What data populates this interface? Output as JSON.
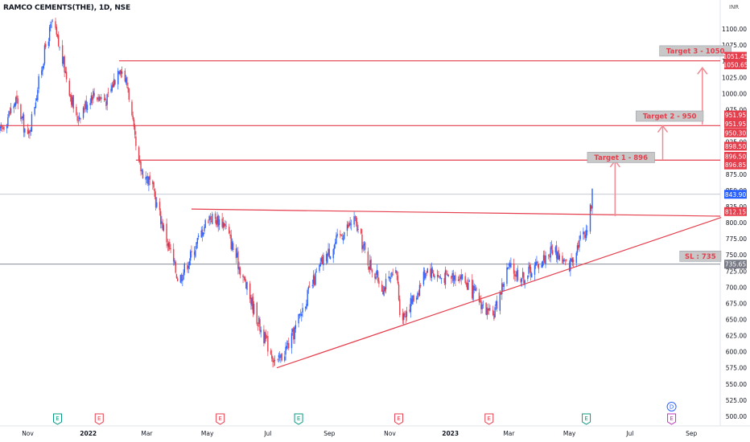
{
  "header": {
    "title": "RAMCO CEMENTS(THE), 1D, NSE"
  },
  "axis_unit": "INR",
  "colors": {
    "up": "#2962ff",
    "down": "#e53e4d",
    "line": "#e53e4d",
    "label_bg": "#e53e4d",
    "current_bg": "#2962ff",
    "sl_bg": "#787b86",
    "callout_bg": "#c8c8c8",
    "callout_text": "#e53e4d"
  },
  "chart_data": {
    "type": "candlestick",
    "title": "RAMCO CEMENTS(THE), 1D, NSE",
    "y_axis": {
      "min": 495,
      "max": 1120,
      "ticks": [
        1100,
        1075,
        1050,
        1025,
        1000,
        975,
        950,
        925,
        900,
        875,
        850,
        825,
        800,
        775,
        750,
        725,
        700,
        675,
        650,
        625,
        600,
        575,
        550,
        525,
        500
      ],
      "tick_labels": [
        "1100.00",
        "1075.00",
        "1050.00",
        "1025.00",
        "1000.00",
        "975.00",
        "950.00",
        "925.00",
        "900.00",
        "875.00",
        "850.00",
        "825.00",
        "800.00",
        "775.00",
        "750.00",
        "725.00",
        "700.00",
        "675.00",
        "650.00",
        "625.00",
        "600.00",
        "575.00",
        "550.00",
        "525.00",
        "500.00"
      ]
    },
    "x_axis": {
      "start_date": "2021-10-04",
      "end_date": "2023-09-30",
      "ticks": [
        {
          "date": "2021-11-01",
          "label": "Nov",
          "bold": false
        },
        {
          "date": "2022-01-01",
          "label": "2022",
          "bold": true
        },
        {
          "date": "2022-03-01",
          "label": "Mar",
          "bold": false
        },
        {
          "date": "2022-05-01",
          "label": "May",
          "bold": false
        },
        {
          "date": "2022-07-01",
          "label": "Jul",
          "bold": false
        },
        {
          "date": "2022-09-01",
          "label": "Sep",
          "bold": false
        },
        {
          "date": "2022-11-01",
          "label": "Nov",
          "bold": false
        },
        {
          "date": "2023-01-01",
          "label": "2023",
          "bold": true
        },
        {
          "date": "2023-03-01",
          "label": "Mar",
          "bold": false
        },
        {
          "date": "2023-05-01",
          "label": "May",
          "bold": false
        },
        {
          "date": "2023-07-01",
          "label": "Jul",
          "bold": false
        },
        {
          "date": "2023-09-01",
          "label": "Sep",
          "bold": false
        }
      ]
    },
    "price_path": [
      {
        "date": "2021-10-04",
        "price": 940
      },
      {
        "date": "2021-10-20",
        "price": 990
      },
      {
        "date": "2021-11-01",
        "price": 930
      },
      {
        "date": "2021-11-20",
        "price": 1080
      },
      {
        "date": "2021-11-26",
        "price": 1110
      },
      {
        "date": "2021-12-08",
        "price": 1040
      },
      {
        "date": "2021-12-20",
        "price": 960
      },
      {
        "date": "2022-01-05",
        "price": 1000
      },
      {
        "date": "2022-01-20",
        "price": 990
      },
      {
        "date": "2022-02-02",
        "price": 1045
      },
      {
        "date": "2022-02-10",
        "price": 1010
      },
      {
        "date": "2022-02-20",
        "price": 890
      },
      {
        "date": "2022-03-05",
        "price": 860
      },
      {
        "date": "2022-03-20",
        "price": 780
      },
      {
        "date": "2022-04-02",
        "price": 710
      },
      {
        "date": "2022-04-18",
        "price": 760
      },
      {
        "date": "2022-05-02",
        "price": 810
      },
      {
        "date": "2022-05-18",
        "price": 800
      },
      {
        "date": "2022-06-05",
        "price": 720
      },
      {
        "date": "2022-06-25",
        "price": 630
      },
      {
        "date": "2022-07-10",
        "price": 580
      },
      {
        "date": "2022-07-25",
        "price": 620
      },
      {
        "date": "2022-08-08",
        "price": 680
      },
      {
        "date": "2022-08-25",
        "price": 740
      },
      {
        "date": "2022-09-10",
        "price": 775
      },
      {
        "date": "2022-09-26",
        "price": 805
      },
      {
        "date": "2022-10-10",
        "price": 740
      },
      {
        "date": "2022-10-25",
        "price": 700
      },
      {
        "date": "2022-11-08",
        "price": 720
      },
      {
        "date": "2022-11-12",
        "price": 650
      },
      {
        "date": "2022-11-28",
        "price": 690
      },
      {
        "date": "2022-12-08",
        "price": 730
      },
      {
        "date": "2022-12-22",
        "price": 715
      },
      {
        "date": "2023-01-10",
        "price": 720
      },
      {
        "date": "2023-01-30",
        "price": 680
      },
      {
        "date": "2023-02-12",
        "price": 650
      },
      {
        "date": "2023-02-28",
        "price": 730
      },
      {
        "date": "2023-03-15",
        "price": 715
      },
      {
        "date": "2023-03-30",
        "price": 735
      },
      {
        "date": "2023-04-15",
        "price": 760
      },
      {
        "date": "2023-04-30",
        "price": 730
      },
      {
        "date": "2023-05-10",
        "price": 770
      },
      {
        "date": "2023-05-20",
        "price": 795
      },
      {
        "date": "2023-05-24",
        "price": 843.9
      }
    ],
    "horizontal_lines": [
      {
        "name": "target-3-line",
        "start_date": "2022-02-01",
        "price": 1050.65
      },
      {
        "name": "target-2-line",
        "start_date": "2021-10-04",
        "price": 950.3
      },
      {
        "name": "target-1-line",
        "start_date": "2022-02-18",
        "price": 896.85
      },
      {
        "name": "neckline",
        "start_date": "2022-04-15",
        "price": 821,
        "end_price": 810
      }
    ],
    "trendline": {
      "start_date": "2022-07-10",
      "start_price": 575,
      "end_date": "2023-10-01",
      "end_price": 808
    },
    "thin_lines": [
      {
        "price": 843.9,
        "color": "#b0b7c8"
      },
      {
        "price": 735.65,
        "color": "#787b86"
      }
    ],
    "price_labels": [
      {
        "price": 1051.45,
        "text": "1051.45",
        "kind": "red",
        "offset": -5
      },
      {
        "price": 1050.65,
        "text": "1050.65",
        "kind": "red",
        "offset": 5
      },
      {
        "price": 951.95,
        "text": "951.95",
        "kind": "red",
        "offset": -12
      },
      {
        "price": 951.95,
        "text": "951.95",
        "kind": "red",
        "offset": -1
      },
      {
        "price": 950.3,
        "text": "950.30",
        "kind": "red",
        "offset": 9
      },
      {
        "price": 898.5,
        "text": "898.50",
        "kind": "red",
        "offset": -16
      },
      {
        "price": 896.5,
        "text": "896.50",
        "kind": "red",
        "offset": -5
      },
      {
        "price": 896.85,
        "text": "896.85",
        "kind": "red",
        "offset": 6
      },
      {
        "price": 843.9,
        "text": "843.90",
        "kind": "blue",
        "offset": 0
      },
      {
        "price": 812.15,
        "text": "812.15",
        "kind": "red",
        "offset": -4
      },
      {
        "price": 735.65,
        "text": "735.65",
        "kind": "grey",
        "offset": 0
      }
    ],
    "annotations": [
      {
        "text": "Target 1 - 896",
        "date": "2023-06-22",
        "price": 901
      },
      {
        "text": "Target 2 - 950",
        "date": "2023-08-10",
        "price": 965
      },
      {
        "text": "Target 3 - 1050",
        "date": "2023-09-05",
        "price": 1066
      },
      {
        "text": "SL : 735",
        "date": "2023-09-10",
        "price": 748
      }
    ],
    "arrows": [
      {
        "date": "2023-06-16",
        "from_price": 810,
        "to_price": 896
      },
      {
        "date": "2023-08-03",
        "from_price": 898,
        "to_price": 950
      },
      {
        "date": "2023-09-12",
        "from_price": 952,
        "to_price": 1040
      }
    ],
    "earnings_markers": [
      {
        "date": "2021-12-01",
        "type": "E",
        "color": "#089981"
      },
      {
        "date": "2022-01-12",
        "type": "E",
        "color": "#e53e4d"
      },
      {
        "date": "2022-05-14",
        "type": "E",
        "color": "#e53e4d"
      },
      {
        "date": "2022-08-01",
        "type": "E",
        "color": "#089981"
      },
      {
        "date": "2022-11-10",
        "type": "E",
        "color": "#e53e4d"
      },
      {
        "date": "2023-02-09",
        "type": "E",
        "color": "#e53e4d"
      },
      {
        "date": "2023-05-18",
        "type": "E",
        "color": "#089981"
      },
      {
        "date": "2023-08-12",
        "type": "E",
        "color": "#c033c0"
      }
    ],
    "dividend_markers": [
      {
        "date": "2023-08-12",
        "type": "D",
        "color": "#2962ff"
      }
    ]
  }
}
